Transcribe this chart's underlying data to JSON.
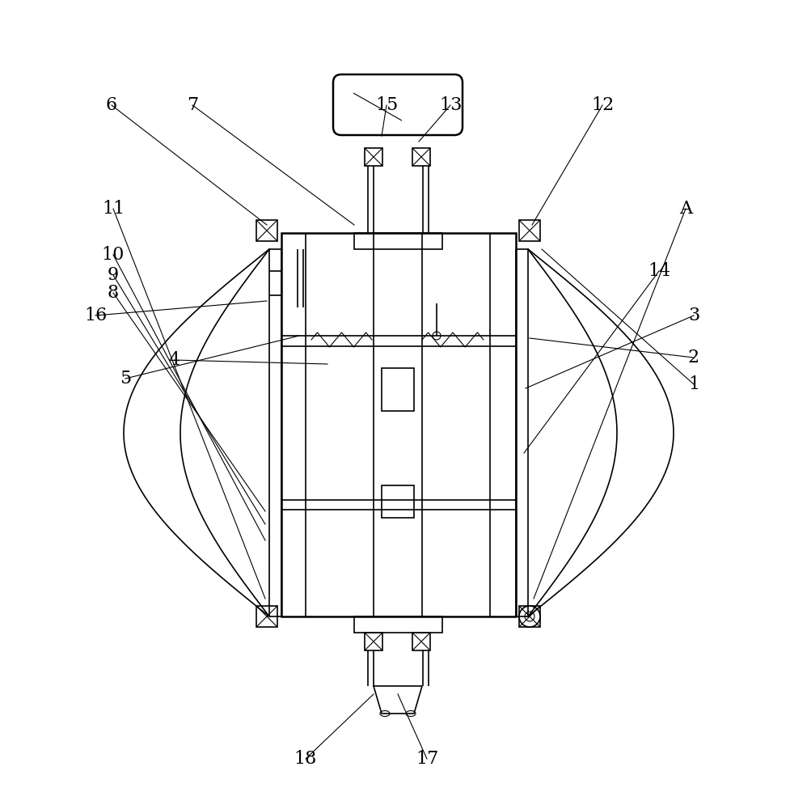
{
  "background_color": "#ffffff",
  "line_color": "#000000",
  "lw_thin": 0.8,
  "lw_med": 1.2,
  "lw_thick": 1.8,
  "fig_width": 9.77,
  "fig_height": 10.0,
  "label_fontsize": 16,
  "annotations": [
    [
      "1",
      670,
      308,
      858,
      475
    ],
    [
      "2",
      655,
      418,
      858,
      442
    ],
    [
      "3",
      650,
      480,
      858,
      390
    ],
    [
      "4",
      405,
      450,
      215,
      445
    ],
    [
      "5",
      370,
      415,
      155,
      468
    ],
    [
      "6",
      330,
      278,
      138,
      130
    ],
    [
      "7",
      438,
      278,
      238,
      130
    ],
    [
      "8",
      328,
      632,
      140,
      362
    ],
    [
      "9",
      328,
      648,
      140,
      340
    ],
    [
      "10",
      328,
      668,
      140,
      315
    ],
    [
      "11",
      328,
      740,
      140,
      258
    ],
    [
      "12",
      658,
      278,
      745,
      130
    ],
    [
      "13",
      518,
      175,
      557,
      130
    ],
    [
      "14",
      648,
      560,
      815,
      335
    ],
    [
      "15",
      472,
      168,
      478,
      130
    ],
    [
      "16",
      330,
      372,
      118,
      390
    ],
    [
      "17",
      492,
      858,
      528,
      938
    ],
    [
      "18",
      462,
      858,
      378,
      938
    ],
    [
      "A",
      660,
      740,
      848,
      258
    ]
  ]
}
